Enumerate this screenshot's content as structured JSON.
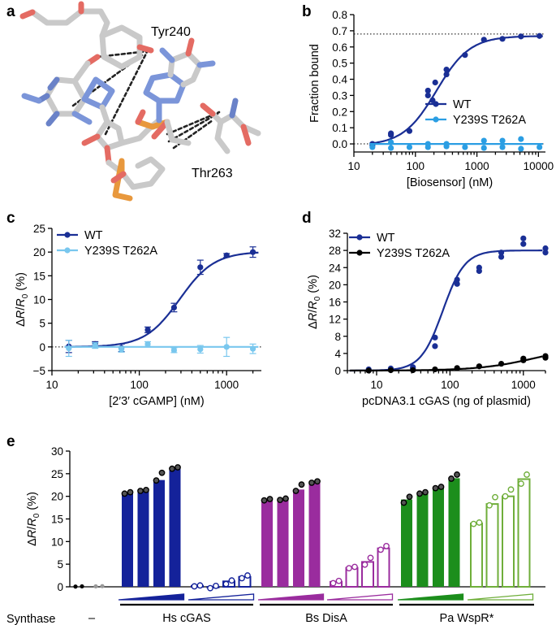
{
  "panel_labels": [
    "a",
    "b",
    "c",
    "d",
    "e"
  ],
  "structure": {
    "residue_labels": [
      "Tyr240",
      "Thr263"
    ]
  },
  "colors": {
    "wt": "#1a2f95",
    "mutant_b": "#2b9ee3",
    "mutant_c": "#79c7ee",
    "mutant_d": "#000000",
    "hs": "#14229a",
    "bs": "#9a2c9e",
    "pa_dark": "#1c8e1c",
    "pa_light": "#6fae3a"
  },
  "chart_data": [
    {
      "id": "b",
      "type": "scatter",
      "title": "",
      "xlabel": "[Biosensor] (nM)",
      "ylabel": "Fraction bound",
      "xscale": "log",
      "xlim": [
        10,
        13000
      ],
      "ylim": [
        -0.05,
        0.8
      ],
      "xticks": [
        10,
        100,
        1000,
        10000
      ],
      "xtick_labels": [
        "10",
        "100",
        "1000",
        "10000"
      ],
      "yticks": [
        0,
        0.1,
        0.2,
        0.3,
        0.4,
        0.5,
        0.6,
        0.7,
        0.8
      ],
      "ytick_labels": [
        "0.0",
        "0.1",
        "0.2",
        "0.3",
        "0.4",
        "0.5",
        "0.6",
        "0.7",
        "0.8"
      ],
      "reference_lines": [
        0.68,
        0.0
      ],
      "legend_position": "lower-right",
      "series": [
        {
          "name": "WT",
          "color": "#1a2f95",
          "points": [
            [
              20,
              0.0
            ],
            [
              20,
              -0.01
            ],
            [
              40,
              0.055
            ],
            [
              40,
              0.065
            ],
            [
              80,
              0.08
            ],
            [
              160,
              0.3
            ],
            [
              160,
              0.33
            ],
            [
              190,
              0.27
            ],
            [
              210,
              0.38
            ],
            [
              320,
              0.43
            ],
            [
              320,
              0.46
            ],
            [
              640,
              0.55
            ],
            [
              1300,
              0.645
            ],
            [
              2600,
              0.65
            ],
            [
              5200,
              0.665
            ],
            [
              10400,
              0.668
            ]
          ],
          "fit": {
            "bottom": -0.01,
            "top": 0.668,
            "ec50": 220,
            "hill": 1.6
          }
        },
        {
          "name": "Y239S T262A",
          "color": "#2b9ee3",
          "points": [
            [
              20,
              -0.02
            ],
            [
              40,
              0.01
            ],
            [
              40,
              -0.025
            ],
            [
              80,
              -0.02
            ],
            [
              160,
              -0.02
            ],
            [
              160,
              0.0
            ],
            [
              320,
              -0.015
            ],
            [
              320,
              0.0
            ],
            [
              640,
              -0.02
            ],
            [
              1300,
              -0.025
            ],
            [
              1300,
              0.02
            ],
            [
              2600,
              -0.02
            ],
            [
              2600,
              0.02
            ],
            [
              5200,
              -0.03
            ],
            [
              5200,
              0.03
            ],
            [
              10400,
              -0.02
            ]
          ],
          "fit": {
            "bottom": 0.0,
            "top": 0.0,
            "ec50": 200,
            "hill": 1
          }
        }
      ]
    },
    {
      "id": "c",
      "type": "scatter",
      "title": "",
      "xlabel": "[2′3′ cGAMP] (nM)",
      "ylabel": "ΔR/R0 (%)",
      "xscale": "log",
      "xlim": [
        10,
        2500
      ],
      "ylim": [
        -5,
        25
      ],
      "xticks": [
        10,
        100,
        1000
      ],
      "xtick_labels": [
        "10",
        "100",
        "1000"
      ],
      "yticks": [
        -5,
        0,
        5,
        10,
        15,
        20,
        25
      ],
      "ytick_labels": [
        "−5",
        "0",
        "5",
        "10",
        "15",
        "20",
        "25"
      ],
      "reference_lines": [
        0
      ],
      "legend_position": "top-left",
      "series": [
        {
          "name": "WT",
          "color": "#1a2f95",
          "points": [
            [
              15.6,
              0.1
            ],
            [
              31.25,
              0.6
            ],
            [
              62.5,
              -0.2
            ],
            [
              125,
              3.6
            ],
            [
              250,
              8.3
            ],
            [
              500,
              16.8
            ],
            [
              1000,
              19.3
            ],
            [
              2000,
              20.0
            ]
          ],
          "errors": [
            1.3,
            0.5,
            0.8,
            0.6,
            0.9,
            1.5,
            0.4,
            1.1
          ],
          "fit": {
            "bottom": 0.0,
            "top": 20.1,
            "ec50": 290,
            "hill": 2.2
          }
        },
        {
          "name": "Y239S T262A",
          "color": "#79c7ee",
          "points": [
            [
              15.6,
              -0.3
            ],
            [
              31.25,
              0.3
            ],
            [
              62.5,
              -0.5
            ],
            [
              125,
              0.6
            ],
            [
              250,
              -0.7
            ],
            [
              500,
              -0.5
            ],
            [
              1000,
              0.0
            ],
            [
              2000,
              -0.4
            ]
          ],
          "errors": [
            1.7,
            0.6,
            0.6,
            0.5,
            0.5,
            0.8,
            2.0,
            1.0
          ],
          "fit": {
            "bottom": 0.0,
            "top": 0.0,
            "ec50": 200,
            "hill": 1
          }
        }
      ]
    },
    {
      "id": "d",
      "type": "scatter",
      "title": "",
      "xlabel": "pcDNA3.1 cGAS (ng of plasmid)",
      "ylabel": "ΔR/R0 (%)",
      "xscale": "log",
      "xlim": [
        4,
        2000
      ],
      "ylim": [
        0,
        32
      ],
      "xticks": [
        10,
        100,
        1000
      ],
      "xtick_labels": [
        "10",
        "100",
        "1000"
      ],
      "yticks": [
        0,
        4,
        8,
        12,
        16,
        20,
        24,
        28,
        32
      ],
      "ytick_labels": [
        "0",
        "4",
        "8",
        "12",
        "16",
        "20",
        "24",
        "28",
        "32"
      ],
      "legend_position": "top-left",
      "series": [
        {
          "name": "WT",
          "color": "#1a2f95",
          "points": [
            [
              7.8,
              0.1
            ],
            [
              7.8,
              0.3
            ],
            [
              15.6,
              0.2
            ],
            [
              15.6,
              0.5
            ],
            [
              31.25,
              0.5
            ],
            [
              31.25,
              0.8
            ],
            [
              62.5,
              5.7
            ],
            [
              62.5,
              7.7
            ],
            [
              125,
              20.2
            ],
            [
              125,
              21.2
            ],
            [
              250,
              23.2
            ],
            [
              250,
              24.0
            ],
            [
              500,
              26.5
            ],
            [
              500,
              27.5
            ],
            [
              1000,
              29.5
            ],
            [
              1000,
              30.8
            ],
            [
              2000,
              27.5
            ],
            [
              2000,
              28.5
            ]
          ],
          "fit": {
            "bottom": 0.0,
            "top": 28.0,
            "ec50": 80,
            "hill": 2.9
          }
        },
        {
          "name": "Y239S T262A",
          "color": "#000000",
          "points": [
            [
              7.8,
              0.0
            ],
            [
              15.6,
              0.1
            ],
            [
              31.25,
              0.1
            ],
            [
              62.5,
              0.3
            ],
            [
              125,
              0.6
            ],
            [
              250,
              1.0
            ],
            [
              500,
              1.6
            ],
            [
              1000,
              2.4
            ],
            [
              1000,
              2.8
            ],
            [
              2000,
              3.4
            ],
            [
              2000,
              3.0
            ]
          ],
          "fit": {
            "bottom": 0.0,
            "top": 6.2,
            "ec50": 1600,
            "hill": 1.1
          }
        }
      ]
    },
    {
      "id": "e",
      "type": "bar",
      "title": "",
      "xlabel": "Synthase",
      "ylabel": "ΔR/R0 (%)",
      "ylim": [
        0,
        30
      ],
      "yticks": [
        0,
        5,
        10,
        15,
        20,
        25,
        30
      ],
      "ytick_labels": [
        "0",
        "5",
        "10",
        "15",
        "20",
        "25",
        "30"
      ],
      "categories": [
        "–",
        "Hs cGAS",
        "Bs DisA",
        "Pa WspR*"
      ],
      "controls": [
        {
          "color": "#000000",
          "points": [
            0.05,
            0.1
          ]
        },
        {
          "color": "#999999",
          "points": [
            0.1,
            0.15
          ]
        }
      ],
      "groups": [
        {
          "synthase": "Hs cGAS",
          "color": "#14229a",
          "filled": true,
          "values": [
            20.8,
            21.3,
            23.6,
            26.2
          ],
          "points": [
            [
              20.6,
              20.9
            ],
            [
              21.2,
              21.4
            ],
            [
              23.5,
              25.2
            ],
            [
              26.1,
              26.4
            ]
          ]
        },
        {
          "synthase": "Hs cGAS",
          "color": "#14229a",
          "filled": false,
          "values": [
            0.2,
            -0.1,
            1.2,
            2.2
          ],
          "points": [
            [
              0.1,
              0.3
            ],
            [
              -0.3,
              0.2
            ],
            [
              0.6,
              1.4
            ],
            [
              1.9,
              2.5
            ]
          ]
        },
        {
          "synthase": "Bs DisA",
          "color": "#9a2c9e",
          "filled": true,
          "values": [
            19.2,
            19.4,
            21.5,
            23.1
          ],
          "points": [
            [
              19.1,
              19.4
            ],
            [
              19.2,
              19.5
            ],
            [
              21.2,
              22.6
            ],
            [
              23.0,
              23.3
            ]
          ]
        },
        {
          "synthase": "Bs DisA",
          "color": "#9a2c9e",
          "filled": false,
          "values": [
            1.1,
            4.2,
            5.5,
            8.5
          ],
          "points": [
            [
              0.8,
              1.3
            ],
            [
              4.1,
              4.4
            ],
            [
              4.9,
              6.4
            ],
            [
              8.2,
              9.0
            ]
          ]
        },
        {
          "synthase": "Pa WspR*",
          "color": "#1c8e1c",
          "filled": true,
          "values": [
            19.3,
            20.7,
            22.0,
            24.0
          ],
          "points": [
            [
              18.6,
              19.9
            ],
            [
              20.6,
              20.9
            ],
            [
              21.8,
              22.1
            ],
            [
              23.9,
              24.8
            ]
          ]
        },
        {
          "synthase": "Pa WspR*",
          "color": "#6fae3a",
          "filled": false,
          "values": [
            14.0,
            18.3,
            20.0,
            23.8
          ],
          "points": [
            [
              13.9,
              14.2
            ],
            [
              18.0,
              19.8
            ],
            [
              20.0,
              21.5
            ],
            [
              22.8,
              24.8
            ]
          ]
        }
      ]
    }
  ]
}
